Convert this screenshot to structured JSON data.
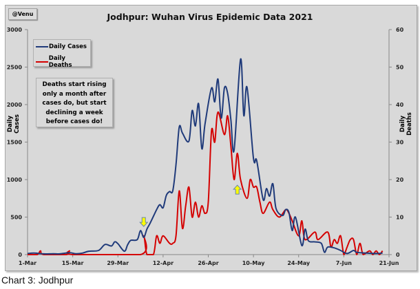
{
  "chart_data": {
    "type": "line",
    "title": "Jodhpur: Wuhan Virus Epidemic Data 2021",
    "watermark": "@Venu",
    "caption": "Chart 3: Jodhpur",
    "annotation": "Deaths start rising only a month after cases do, but start declining a week before cases do!",
    "ylabel_left": "Daily Cases",
    "ylabel_right": "Daily Deaths",
    "ylim_left": [
      0,
      3000
    ],
    "ylim_right": [
      0,
      60
    ],
    "yticks_left": [
      "3000",
      "2500",
      "2000",
      "1500",
      "1000",
      "500",
      "0"
    ],
    "yticks_right": [
      "60",
      "50",
      "40",
      "30",
      "20",
      "10",
      "0"
    ],
    "xlim": [
      "2021-03-01",
      "2021-06-21"
    ],
    "xticks": [
      "1-Mar",
      "15-Mar",
      "29-Mar",
      "12-Apr",
      "26-Apr",
      "10-May",
      "24-May",
      "7-Jun",
      "21-Jun"
    ],
    "grid": false,
    "legend_position": "top-left",
    "series": [
      {
        "name": "Daily Cases",
        "axis": "left",
        "color": "#1f3a7a",
        "points": [
          [
            "2021-03-01",
            15
          ],
          [
            "2021-03-03",
            20
          ],
          [
            "2021-03-06",
            10
          ],
          [
            "2021-03-09",
            12
          ],
          [
            "2021-03-11",
            10
          ],
          [
            "2021-03-14",
            25
          ],
          [
            "2021-03-16",
            12
          ],
          [
            "2021-03-18",
            20
          ],
          [
            "2021-03-20",
            45
          ],
          [
            "2021-03-23",
            55
          ],
          [
            "2021-03-25",
            135
          ],
          [
            "2021-03-27",
            115
          ],
          [
            "2021-03-28",
            170
          ],
          [
            "2021-03-29",
            145
          ],
          [
            "2021-03-31",
            45
          ],
          [
            "2021-04-01",
            130
          ],
          [
            "2021-04-02",
            190
          ],
          [
            "2021-04-04",
            200
          ],
          [
            "2021-04-05",
            320
          ],
          [
            "2021-04-06",
            230
          ],
          [
            "2021-04-07",
            340
          ],
          [
            "2021-04-08",
            420
          ],
          [
            "2021-04-10",
            600
          ],
          [
            "2021-04-11",
            665
          ],
          [
            "2021-04-12",
            625
          ],
          [
            "2021-04-13",
            790
          ],
          [
            "2021-04-14",
            840
          ],
          [
            "2021-04-15",
            850
          ],
          [
            "2021-04-16",
            1200
          ],
          [
            "2021-04-17",
            1700
          ],
          [
            "2021-04-18",
            1620
          ],
          [
            "2021-04-20",
            1514
          ],
          [
            "2021-04-21",
            1920
          ],
          [
            "2021-04-22",
            1715
          ],
          [
            "2021-04-23",
            2012
          ],
          [
            "2021-04-24",
            1413
          ],
          [
            "2021-04-25",
            1743
          ],
          [
            "2021-04-27",
            2220
          ],
          [
            "2021-04-28",
            2037
          ],
          [
            "2021-04-29",
            2339
          ],
          [
            "2021-04-30",
            1820
          ],
          [
            "2021-05-01",
            2220
          ],
          [
            "2021-05-02",
            2150
          ],
          [
            "2021-05-03",
            1800
          ],
          [
            "2021-05-04",
            1394
          ],
          [
            "2021-05-06",
            2605
          ],
          [
            "2021-05-07",
            1853
          ],
          [
            "2021-05-08",
            2230
          ],
          [
            "2021-05-10",
            1284
          ],
          [
            "2021-05-11",
            1254
          ],
          [
            "2021-05-13",
            734
          ],
          [
            "2021-05-14",
            880
          ],
          [
            "2021-05-15",
            780
          ],
          [
            "2021-05-16",
            945
          ],
          [
            "2021-05-17",
            615
          ],
          [
            "2021-05-19",
            520
          ],
          [
            "2021-05-20",
            600
          ],
          [
            "2021-05-21",
            560
          ],
          [
            "2021-05-22",
            320
          ],
          [
            "2021-05-23",
            500
          ],
          [
            "2021-05-25",
            120
          ],
          [
            "2021-05-26",
            340
          ],
          [
            "2021-05-27",
            185
          ],
          [
            "2021-05-29",
            170
          ],
          [
            "2021-05-31",
            150
          ],
          [
            "2021-06-01",
            30
          ],
          [
            "2021-06-02",
            100
          ],
          [
            "2021-06-04",
            90
          ],
          [
            "2021-06-06",
            55
          ],
          [
            "2021-06-08",
            15
          ],
          [
            "2021-06-10",
            55
          ],
          [
            "2021-06-11",
            30
          ],
          [
            "2021-06-14",
            20
          ],
          [
            "2021-06-17",
            15
          ],
          [
            "2021-06-19",
            20
          ]
        ]
      },
      {
        "name": "Daily Deaths",
        "axis": "right",
        "color": "#d40000",
        "points": [
          [
            "2021-03-01",
            0
          ],
          [
            "2021-03-04",
            0
          ],
          [
            "2021-03-05",
            1
          ],
          [
            "2021-03-06",
            0
          ],
          [
            "2021-03-13",
            0
          ],
          [
            "2021-03-14",
            1
          ],
          [
            "2021-03-15",
            0
          ],
          [
            "2021-04-05",
            0
          ],
          [
            "2021-04-06",
            5
          ],
          [
            "2021-04-07",
            0
          ],
          [
            "2021-04-09",
            0
          ],
          [
            "2021-04-10",
            5
          ],
          [
            "2021-04-11",
            3
          ],
          [
            "2021-04-12",
            5
          ],
          [
            "2021-04-14",
            3
          ],
          [
            "2021-04-15",
            3
          ],
          [
            "2021-04-16",
            5
          ],
          [
            "2021-04-17",
            17
          ],
          [
            "2021-04-18",
            7
          ],
          [
            "2021-04-19",
            13
          ],
          [
            "2021-04-20",
            18
          ],
          [
            "2021-04-21",
            10
          ],
          [
            "2021-04-22",
            14
          ],
          [
            "2021-04-23",
            10
          ],
          [
            "2021-04-24",
            13
          ],
          [
            "2021-04-25",
            11
          ],
          [
            "2021-04-26",
            14
          ],
          [
            "2021-04-27",
            33
          ],
          [
            "2021-04-28",
            30
          ],
          [
            "2021-04-29",
            38
          ],
          [
            "2021-05-01",
            32
          ],
          [
            "2021-05-02",
            37
          ],
          [
            "2021-05-03",
            29
          ],
          [
            "2021-05-04",
            20
          ],
          [
            "2021-05-05",
            27
          ],
          [
            "2021-05-06",
            20
          ],
          [
            "2021-05-08",
            15
          ],
          [
            "2021-05-09",
            20
          ],
          [
            "2021-05-10",
            18
          ],
          [
            "2021-05-11",
            18
          ],
          [
            "2021-05-12",
            14
          ],
          [
            "2021-05-13",
            11
          ],
          [
            "2021-05-15",
            14
          ],
          [
            "2021-05-16",
            12
          ],
          [
            "2021-05-18",
            10
          ],
          [
            "2021-05-20",
            12
          ],
          [
            "2021-05-21",
            11
          ],
          [
            "2021-05-22",
            9
          ],
          [
            "2021-05-24",
            5
          ],
          [
            "2021-05-25",
            9
          ],
          [
            "2021-05-26",
            4
          ],
          [
            "2021-05-29",
            6
          ],
          [
            "2021-05-30",
            4
          ],
          [
            "2021-06-02",
            6
          ],
          [
            "2021-06-03",
            2
          ],
          [
            "2021-06-04",
            4
          ],
          [
            "2021-06-05",
            3
          ],
          [
            "2021-06-06",
            5
          ],
          [
            "2021-06-07",
            0
          ],
          [
            "2021-06-08",
            2
          ],
          [
            "2021-06-09",
            4
          ],
          [
            "2021-06-10",
            4
          ],
          [
            "2021-06-11",
            0
          ],
          [
            "2021-06-12",
            3
          ],
          [
            "2021-06-13",
            0
          ],
          [
            "2021-06-15",
            1
          ],
          [
            "2021-06-16",
            0
          ],
          [
            "2021-06-17",
            1
          ],
          [
            "2021-06-18",
            0
          ],
          [
            "2021-06-19",
            1
          ]
        ]
      }
    ],
    "markers": [
      {
        "type": "arrow-down",
        "color": "#ffff00",
        "date": "2021-04-06",
        "value_cases": 430
      },
      {
        "type": "arrow-up",
        "color": "#ffff00",
        "date": "2021-05-05",
        "value_cases": 870
      }
    ]
  }
}
